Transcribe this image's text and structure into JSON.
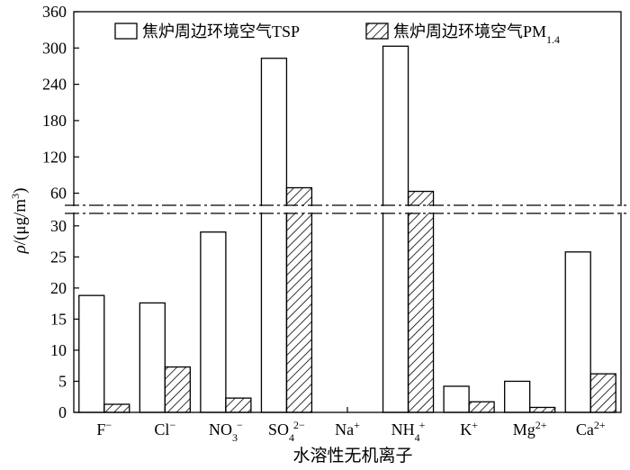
{
  "chart_data": {
    "type": "bar",
    "xlabel": "水溶性无机离子",
    "ylabel": "ρ/(μg/m3)",
    "ylabel_parts": {
      "base": "ρ/(μg/m",
      "sup": "3",
      "end": ")"
    },
    "axis_break": true,
    "lower_ylim": [
      0,
      32
    ],
    "lower_yticks": [
      0,
      5,
      10,
      15,
      20,
      25,
      30
    ],
    "upper_ylim": [
      40,
      360
    ],
    "upper_yticks": [
      60,
      120,
      180,
      240,
      300,
      360
    ],
    "legend_placement": "top",
    "categories": [
      {
        "base": "F",
        "sub": "",
        "sup": "−"
      },
      {
        "base": "Cl",
        "sub": "",
        "sup": "−"
      },
      {
        "base": "NO",
        "sub": "3",
        "sup": "−"
      },
      {
        "base": "SO",
        "sub": "4",
        "sup": "2−"
      },
      {
        "base": "Na",
        "sub": "",
        "sup": "+"
      },
      {
        "base": "NH",
        "sub": "4",
        "sup": "+"
      },
      {
        "base": "K",
        "sub": "",
        "sup": "+"
      },
      {
        "base": "Mg",
        "sub": "",
        "sup": "2+"
      },
      {
        "base": "Ca",
        "sub": "",
        "sup": "2+"
      }
    ],
    "series": [
      {
        "name": "焦炉周边环境空气TSP",
        "name_parts": {
          "base": "焦炉周边环境空气TSP",
          "sub": ""
        },
        "pattern": "hollow",
        "values": [
          18.8,
          17.6,
          29.0,
          283,
          0,
          303,
          4.2,
          5.0,
          25.8
        ]
      },
      {
        "name": "焦炉周边环境空气PM1.4",
        "name_parts": {
          "base": "焦炉周边环境空气PM",
          "sub": "1.4"
        },
        "pattern": "hatched",
        "values": [
          1.3,
          7.3,
          2.3,
          69,
          0,
          63,
          1.7,
          0.8,
          6.2
        ]
      }
    ]
  }
}
